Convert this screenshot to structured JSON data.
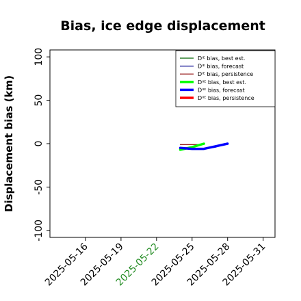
{
  "chart_data": {
    "type": "line",
    "title": "Bias, ice edge displacement",
    "ylabel": "Displacement bias (km)",
    "xlabel": "",
    "ylim": [
      -108,
      108
    ],
    "xlim": [
      "2025-05-13",
      "2025-06-01"
    ],
    "yticks": [
      100,
      50,
      0,
      -50,
      -100
    ],
    "xticks": [
      {
        "date": "2025-05-16",
        "label": "2025-05-16",
        "color": "#000000"
      },
      {
        "date": "2025-05-19",
        "label": "2025-05-19",
        "color": "#000000"
      },
      {
        "date": "2025-05-22",
        "label": "2025-05-22",
        "color": "#228B22"
      },
      {
        "date": "2025-05-25",
        "label": "2025-05-25",
        "color": "#000000"
      },
      {
        "date": "2025-05-28",
        "label": "2025-05-28",
        "color": "#000000"
      },
      {
        "date": "2025-05-31",
        "label": "2025-05-31",
        "color": "#000000"
      }
    ],
    "legend_position": "top-right",
    "series": [
      {
        "name": "Dᴵᴱ bias, best est.",
        "color": "#006400",
        "width": 1.2,
        "x": [],
        "y": []
      },
      {
        "name": "Dᴵᴱ bias, forecast",
        "color": "#00008B",
        "width": 1.2,
        "x": [
          "2025-05-24",
          "2025-05-26",
          "2025-05-27",
          "2025-05-28"
        ],
        "y": [
          -5,
          -6,
          -4,
          0
        ]
      },
      {
        "name": "Dᴵᴱ bias, persistence",
        "color": "#8B0000",
        "width": 1.2,
        "x": [
          "2025-05-24",
          "2025-05-26"
        ],
        "y": [
          -1,
          -1
        ]
      },
      {
        "name": "Dᴵᴵᴱ bias, best est.",
        "color": "#00FF00",
        "width": 3.5,
        "x": [
          "2025-05-24",
          "2025-05-25",
          "2025-05-26"
        ],
        "y": [
          -7,
          -4,
          0
        ]
      },
      {
        "name": "Dᴵᴵᴱ bias, forecast",
        "color": "#0000FF",
        "width": 3.5,
        "x": [
          "2025-05-24",
          "2025-05-25",
          "2025-05-26",
          "2025-05-27",
          "2025-05-28"
        ],
        "y": [
          -5,
          -6,
          -6,
          -3,
          0
        ]
      },
      {
        "name": "Dᴵᴵᴱ bias, persistence",
        "color": "#FF0000",
        "width": 3.5,
        "x": [],
        "y": []
      }
    ]
  }
}
